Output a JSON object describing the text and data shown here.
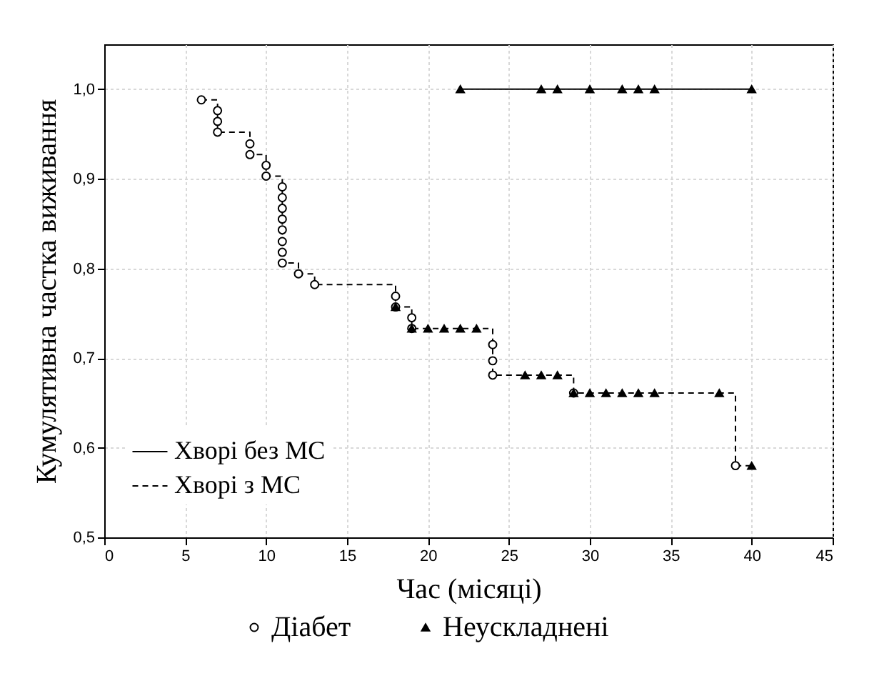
{
  "chart_data": {
    "type": "step",
    "xlabel": "Час (місяці)",
    "ylabel": "Кумулятивна частка виживання",
    "xlim": [
      0,
      45
    ],
    "xticks": [
      0,
      5,
      10,
      15,
      20,
      25,
      30,
      35,
      40,
      45
    ],
    "ylim": [
      0.5,
      1.05
    ],
    "yticks": [
      {
        "value": 0.5,
        "label": "0,5"
      },
      {
        "value": 0.6,
        "label": "0,6"
      },
      {
        "value": 0.7,
        "label": "0,7"
      },
      {
        "value": 0.8,
        "label": "0,8"
      },
      {
        "value": 0.9,
        "label": "0,9"
      },
      {
        "value": 1.0,
        "label": "1,0"
      }
    ],
    "grid": true,
    "legend": "bottom left",
    "series": [
      {
        "name": "Хворі без МС",
        "color": "#000000",
        "line_style": "solid",
        "marker": "none",
        "x": [
          22,
          40
        ],
        "values": [
          1.0,
          1.0
        ]
      },
      {
        "name": "Хворі з МС",
        "color": "#000000",
        "line_style": "dashed",
        "marker": "none",
        "x": [
          6,
          7,
          9,
          10,
          11,
          12,
          13,
          18,
          19,
          24,
          29,
          39,
          40
        ],
        "values": [
          0.988,
          0.952,
          0.927,
          0.903,
          0.806,
          0.794,
          0.782,
          0.757,
          0.733,
          0.681,
          0.661,
          0.58,
          0.58
        ]
      },
      {
        "name": "Діабет",
        "type": "scatter",
        "color": "#000000",
        "marker": "circle",
        "x": [
          6,
          7,
          7,
          7,
          9,
          9,
          10,
          10,
          11,
          11,
          11,
          11,
          11,
          11,
          11,
          11,
          12,
          13,
          18,
          18,
          19,
          19,
          24,
          24,
          24,
          29,
          39
        ],
        "values": [
          0.988,
          0.976,
          0.964,
          0.952,
          0.939,
          0.927,
          0.915,
          0.903,
          0.891,
          0.879,
          0.867,
          0.855,
          0.843,
          0.83,
          0.818,
          0.806,
          0.794,
          0.782,
          0.769,
          0.757,
          0.745,
          0.733,
          0.715,
          0.697,
          0.681,
          0.661,
          0.58
        ]
      },
      {
        "name": "Неускладнені",
        "type": "scatter",
        "color": "#000000",
        "marker": "triangle",
        "x": [
          22,
          27,
          28,
          30,
          32,
          33,
          34,
          40,
          18,
          19,
          20,
          21,
          22,
          23,
          26,
          27,
          28,
          29,
          30,
          31,
          32,
          33,
          34,
          38,
          40
        ],
        "values": [
          1.0,
          1.0,
          1.0,
          1.0,
          1.0,
          1.0,
          1.0,
          1.0,
          0.757,
          0.733,
          0.733,
          0.733,
          0.733,
          0.733,
          0.681,
          0.681,
          0.681,
          0.661,
          0.661,
          0.661,
          0.661,
          0.661,
          0.661,
          0.661,
          0.58
        ]
      }
    ]
  }
}
